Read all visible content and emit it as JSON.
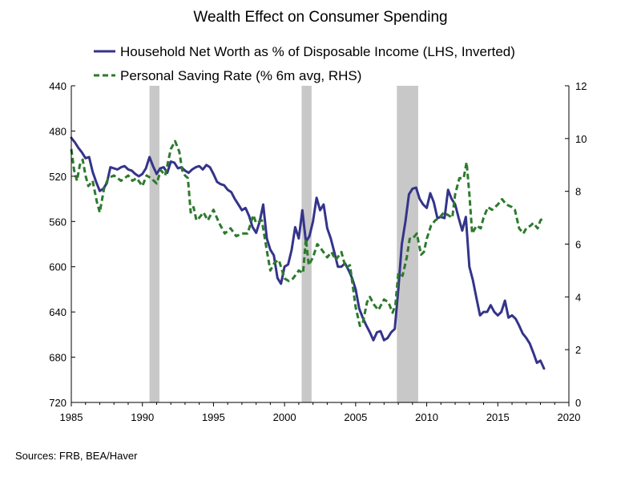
{
  "chart_data": {
    "type": "line",
    "title": "Wealth Effect on Consumer Spending",
    "source": "Sources:  FRB, BEA/Haver",
    "x_axis": {
      "min": 1985,
      "max": 2020,
      "ticks": [
        "1985",
        "1990",
        "1995",
        "2000",
        "2005",
        "2010",
        "2015",
        "2020"
      ]
    },
    "y_left": {
      "min": 440,
      "max": 720,
      "inverted": true,
      "ticks": [
        "440",
        "480",
        "520",
        "560",
        "600",
        "640",
        "680",
        "720"
      ]
    },
    "y_right": {
      "min": 0,
      "max": 12,
      "ticks": [
        "0",
        "2",
        "4",
        "6",
        "8",
        "10",
        "12"
      ]
    },
    "grid": false,
    "legend_position": "top",
    "recessions": [
      [
        1990.5,
        1991.2
      ],
      [
        2001.2,
        2001.9
      ],
      [
        2007.9,
        2009.4
      ]
    ],
    "recession_color": "#c8c8c8",
    "series": [
      {
        "name": "Household Net Worth as % of Disposable Income (LHS, Inverted)",
        "axis": "left",
        "color": "#34348a",
        "dash": "solid",
        "points": [
          [
            1985.0,
            486
          ],
          [
            1985.25,
            490
          ],
          [
            1985.5,
            495
          ],
          [
            1985.75,
            499
          ],
          [
            1986.0,
            504
          ],
          [
            1986.25,
            503
          ],
          [
            1986.5,
            516
          ],
          [
            1986.75,
            525
          ],
          [
            1987.0,
            533
          ],
          [
            1987.25,
            531
          ],
          [
            1987.5,
            526
          ],
          [
            1987.75,
            512
          ],
          [
            1988.0,
            513
          ],
          [
            1988.25,
            514
          ],
          [
            1988.5,
            512
          ],
          [
            1988.75,
            511
          ],
          [
            1989.0,
            514
          ],
          [
            1989.25,
            515
          ],
          [
            1989.5,
            518
          ],
          [
            1989.75,
            520
          ],
          [
            1990.0,
            518
          ],
          [
            1990.25,
            513
          ],
          [
            1990.5,
            503
          ],
          [
            1990.75,
            511
          ],
          [
            1991.0,
            518
          ],
          [
            1991.25,
            513
          ],
          [
            1991.5,
            512
          ],
          [
            1991.75,
            517
          ],
          [
            1992.0,
            507
          ],
          [
            1992.25,
            508
          ],
          [
            1992.5,
            513
          ],
          [
            1992.75,
            512
          ],
          [
            1993.0,
            515
          ],
          [
            1993.25,
            517
          ],
          [
            1993.5,
            514
          ],
          [
            1993.75,
            512
          ],
          [
            1994.0,
            511
          ],
          [
            1994.25,
            514
          ],
          [
            1994.5,
            510
          ],
          [
            1994.75,
            512
          ],
          [
            1995.0,
            518
          ],
          [
            1995.25,
            525
          ],
          [
            1995.5,
            527
          ],
          [
            1995.75,
            528
          ],
          [
            1996.0,
            532
          ],
          [
            1996.25,
            534
          ],
          [
            1996.5,
            540
          ],
          [
            1996.75,
            545
          ],
          [
            1997.0,
            550
          ],
          [
            1997.25,
            548
          ],
          [
            1997.5,
            555
          ],
          [
            1997.75,
            565
          ],
          [
            1998.0,
            570
          ],
          [
            1998.25,
            560
          ],
          [
            1998.5,
            545
          ],
          [
            1998.75,
            575
          ],
          [
            1999.0,
            585
          ],
          [
            1999.25,
            590
          ],
          [
            1999.5,
            610
          ],
          [
            1999.75,
            615
          ],
          [
            2000.0,
            600
          ],
          [
            2000.25,
            598
          ],
          [
            2000.5,
            585
          ],
          [
            2000.75,
            565
          ],
          [
            2001.0,
            575
          ],
          [
            2001.25,
            550
          ],
          [
            2001.5,
            578
          ],
          [
            2001.75,
            573
          ],
          [
            2002.0,
            560
          ],
          [
            2002.25,
            539
          ],
          [
            2002.5,
            550
          ],
          [
            2002.75,
            545
          ],
          [
            2003.0,
            566
          ],
          [
            2003.25,
            575
          ],
          [
            2003.5,
            587
          ],
          [
            2003.75,
            600
          ],
          [
            2004.0,
            600
          ],
          [
            2004.25,
            597
          ],
          [
            2004.5,
            603
          ],
          [
            2004.75,
            610
          ],
          [
            2005.0,
            620
          ],
          [
            2005.25,
            637
          ],
          [
            2005.5,
            645
          ],
          [
            2005.75,
            652
          ],
          [
            2006.0,
            658
          ],
          [
            2006.25,
            665
          ],
          [
            2006.5,
            658
          ],
          [
            2006.75,
            657
          ],
          [
            2007.0,
            665
          ],
          [
            2007.25,
            663
          ],
          [
            2007.5,
            658
          ],
          [
            2007.75,
            655
          ],
          [
            2008.0,
            620
          ],
          [
            2008.25,
            580
          ],
          [
            2008.5,
            560
          ],
          [
            2008.75,
            536
          ],
          [
            2009.0,
            531
          ],
          [
            2009.25,
            530
          ],
          [
            2009.5,
            540
          ],
          [
            2009.75,
            545
          ],
          [
            2010.0,
            548
          ],
          [
            2010.25,
            535
          ],
          [
            2010.5,
            543
          ],
          [
            2010.75,
            557
          ],
          [
            2011.0,
            556
          ],
          [
            2011.25,
            557
          ],
          [
            2011.5,
            532
          ],
          [
            2011.75,
            540
          ],
          [
            2012.0,
            545
          ],
          [
            2012.25,
            557
          ],
          [
            2012.5,
            568
          ],
          [
            2012.75,
            556
          ],
          [
            2013.0,
            600
          ],
          [
            2013.25,
            612
          ],
          [
            2013.5,
            628
          ],
          [
            2013.75,
            643
          ],
          [
            2014.0,
            640
          ],
          [
            2014.25,
            640
          ],
          [
            2014.5,
            634
          ],
          [
            2014.75,
            640
          ],
          [
            2015.0,
            643
          ],
          [
            2015.25,
            640
          ],
          [
            2015.5,
            630
          ],
          [
            2015.75,
            645
          ],
          [
            2016.0,
            643
          ],
          [
            2016.25,
            646
          ],
          [
            2016.5,
            652
          ],
          [
            2016.75,
            659
          ],
          [
            2017.0,
            663
          ],
          [
            2017.25,
            668
          ],
          [
            2017.5,
            676
          ],
          [
            2017.75,
            685
          ],
          [
            2018.0,
            683
          ],
          [
            2018.25,
            690
          ]
        ]
      },
      {
        "name": "Personal Saving Rate (% 6m avg, RHS)",
        "axis": "right",
        "color": "#2d7a2d",
        "dash": "dashed",
        "points": [
          [
            1985.0,
            9.6
          ],
          [
            1985.2,
            8.8
          ],
          [
            1985.4,
            8.4
          ],
          [
            1985.6,
            9.0
          ],
          [
            1985.8,
            9.2
          ],
          [
            1986.0,
            8.6
          ],
          [
            1986.2,
            8.2
          ],
          [
            1986.5,
            8.4
          ],
          [
            1986.8,
            7.6
          ],
          [
            1987.0,
            7.2
          ],
          [
            1987.3,
            8.1
          ],
          [
            1987.6,
            8.5
          ],
          [
            1988.0,
            8.6
          ],
          [
            1988.5,
            8.4
          ],
          [
            1989.0,
            8.6
          ],
          [
            1989.3,
            8.4
          ],
          [
            1989.6,
            8.5
          ],
          [
            1990.0,
            8.2
          ],
          [
            1990.3,
            8.6
          ],
          [
            1990.6,
            8.5
          ],
          [
            1991.0,
            8.3
          ],
          [
            1991.3,
            8.8
          ],
          [
            1991.6,
            8.6
          ],
          [
            1992.0,
            9.6
          ],
          [
            1992.3,
            9.9
          ],
          [
            1992.6,
            9.5
          ],
          [
            1992.8,
            8.8
          ],
          [
            1993.0,
            8.6
          ],
          [
            1993.2,
            8.5
          ],
          [
            1993.4,
            7.2
          ],
          [
            1993.6,
            7.4
          ],
          [
            1993.8,
            6.9
          ],
          [
            1994.0,
            7.0
          ],
          [
            1994.3,
            7.2
          ],
          [
            1994.6,
            6.9
          ],
          [
            1995.0,
            7.3
          ],
          [
            1995.4,
            6.8
          ],
          [
            1995.8,
            6.4
          ],
          [
            1996.2,
            6.6
          ],
          [
            1996.6,
            6.3
          ],
          [
            1997.0,
            6.4
          ],
          [
            1997.4,
            6.4
          ],
          [
            1997.8,
            7.1
          ],
          [
            1998.0,
            6.8
          ],
          [
            1998.4,
            6.9
          ],
          [
            1998.8,
            5.6
          ],
          [
            1999.0,
            5.0
          ],
          [
            1999.3,
            5.3
          ],
          [
            1999.6,
            5.4
          ],
          [
            2000.0,
            4.7
          ],
          [
            2000.3,
            4.6
          ],
          [
            2000.6,
            4.7
          ],
          [
            2001.0,
            5.0
          ],
          [
            2001.3,
            4.9
          ],
          [
            2001.5,
            6.2
          ],
          [
            2001.7,
            5.2
          ],
          [
            2002.0,
            5.5
          ],
          [
            2002.3,
            6.0
          ],
          [
            2002.6,
            5.8
          ],
          [
            2003.0,
            5.5
          ],
          [
            2003.3,
            5.7
          ],
          [
            2003.6,
            5.4
          ],
          [
            2004.0,
            5.7
          ],
          [
            2004.3,
            5.1
          ],
          [
            2004.6,
            5.2
          ],
          [
            2005.0,
            3.6
          ],
          [
            2005.3,
            2.9
          ],
          [
            2005.5,
            3.0
          ],
          [
            2005.8,
            3.8
          ],
          [
            2006.0,
            4.0
          ],
          [
            2006.3,
            3.7
          ],
          [
            2006.6,
            3.5
          ],
          [
            2007.0,
            3.9
          ],
          [
            2007.3,
            3.8
          ],
          [
            2007.6,
            3.4
          ],
          [
            2007.8,
            3.7
          ],
          [
            2008.0,
            4.9
          ],
          [
            2008.3,
            4.8
          ],
          [
            2008.6,
            5.5
          ],
          [
            2008.8,
            6.2
          ],
          [
            2009.0,
            6.2
          ],
          [
            2009.3,
            6.4
          ],
          [
            2009.6,
            5.6
          ],
          [
            2009.8,
            5.7
          ],
          [
            2010.0,
            6.2
          ],
          [
            2010.3,
            6.7
          ],
          [
            2010.6,
            6.9
          ],
          [
            2010.9,
            7.0
          ],
          [
            2011.2,
            7.2
          ],
          [
            2011.5,
            7.1
          ],
          [
            2011.8,
            7.0
          ],
          [
            2012.0,
            7.9
          ],
          [
            2012.3,
            8.5
          ],
          [
            2012.6,
            8.5
          ],
          [
            2012.8,
            9.1
          ],
          [
            2013.0,
            7.9
          ],
          [
            2013.2,
            6.4
          ],
          [
            2013.5,
            6.7
          ],
          [
            2013.8,
            6.6
          ],
          [
            2014.0,
            7.0
          ],
          [
            2014.3,
            7.4
          ],
          [
            2014.6,
            7.3
          ],
          [
            2015.0,
            7.5
          ],
          [
            2015.3,
            7.7
          ],
          [
            2015.6,
            7.5
          ],
          [
            2016.0,
            7.4
          ],
          [
            2016.2,
            7.3
          ],
          [
            2016.5,
            6.6
          ],
          [
            2016.8,
            6.4
          ],
          [
            2017.0,
            6.6
          ],
          [
            2017.3,
            6.7
          ],
          [
            2017.5,
            6.8
          ],
          [
            2017.8,
            6.6
          ],
          [
            2018.0,
            6.9
          ],
          [
            2018.2,
            7.0
          ]
        ]
      }
    ]
  }
}
